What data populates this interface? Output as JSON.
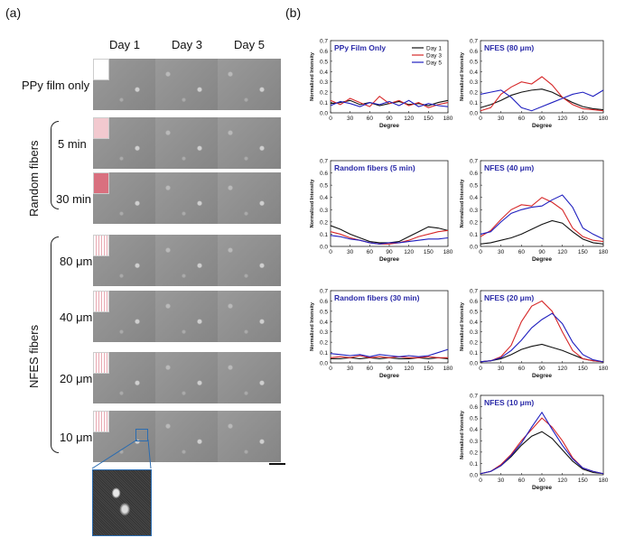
{
  "panel_a": {
    "label": "(a)",
    "days": [
      "Day 1",
      "Day 3",
      "Day 5"
    ],
    "rows": [
      {
        "label": "PPy film only",
        "inset": "blank"
      },
      {
        "label": "5 min",
        "inset": "rand"
      },
      {
        "label": "30 min",
        "inset": "rand2"
      },
      {
        "label": "80 μm",
        "inset": "lines"
      },
      {
        "label": "40 μm",
        "inset": "lines"
      },
      {
        "label": "20 μm",
        "inset": "lines"
      },
      {
        "label": "10 μm",
        "inset": "lines"
      }
    ],
    "group_random": "Random fibers",
    "group_nfes": "NFES fibers",
    "colors": {
      "zoom_box": "#2b6cb0",
      "cell_bg": "#8f8f8f"
    }
  },
  "panel_b": {
    "label": "(b)"
  },
  "chart_data": [
    {
      "type": "line",
      "title": "PPy Film Only",
      "xlabel": "Degree",
      "ylabel": "Normalized Intensity",
      "xlim": [
        0,
        180
      ],
      "ylim": [
        0,
        0.7
      ],
      "legend": [
        "Day 1",
        "Day 3",
        "Day 5"
      ],
      "xticks": [
        0,
        30,
        60,
        90,
        120,
        150,
        180
      ],
      "yticks": [
        0.0,
        0.1,
        0.2,
        0.3,
        0.4,
        0.5,
        0.6,
        0.7
      ],
      "series": [
        {
          "name": "Day 1",
          "color": "#111111",
          "x": [
            0,
            15,
            30,
            45,
            60,
            75,
            90,
            105,
            120,
            135,
            150,
            165,
            180
          ],
          "y": [
            0.09,
            0.1,
            0.12,
            0.08,
            0.1,
            0.07,
            0.09,
            0.11,
            0.08,
            0.09,
            0.07,
            0.1,
            0.12
          ]
        },
        {
          "name": "Day 3",
          "color": "#d62728",
          "x": [
            0,
            15,
            30,
            45,
            60,
            75,
            90,
            105,
            120,
            135,
            150,
            165,
            180
          ],
          "y": [
            0.12,
            0.08,
            0.14,
            0.1,
            0.06,
            0.16,
            0.09,
            0.12,
            0.07,
            0.1,
            0.05,
            0.08,
            0.1
          ]
        },
        {
          "name": "Day 5",
          "color": "#1f1fbf",
          "x": [
            0,
            15,
            30,
            45,
            60,
            75,
            90,
            105,
            120,
            135,
            150,
            165,
            180
          ],
          "y": [
            0.07,
            0.11,
            0.09,
            0.06,
            0.1,
            0.08,
            0.11,
            0.07,
            0.12,
            0.06,
            0.09,
            0.07,
            0.06
          ]
        }
      ]
    },
    {
      "type": "line",
      "title": "NFES (80 μm)",
      "xlabel": "Degree",
      "ylabel": "Normalized Intensity",
      "xlim": [
        0,
        180
      ],
      "ylim": [
        0,
        0.7
      ],
      "xticks": [
        0,
        30,
        60,
        90,
        120,
        150,
        180
      ],
      "yticks": [
        0.0,
        0.1,
        0.2,
        0.3,
        0.4,
        0.5,
        0.6,
        0.7
      ],
      "series": [
        {
          "name": "Day 1",
          "color": "#111111",
          "x": [
            0,
            15,
            30,
            45,
            60,
            75,
            90,
            105,
            120,
            135,
            150,
            165,
            180
          ],
          "y": [
            0.05,
            0.08,
            0.12,
            0.17,
            0.2,
            0.22,
            0.23,
            0.2,
            0.15,
            0.1,
            0.06,
            0.04,
            0.03
          ]
        },
        {
          "name": "Day 3",
          "color": "#d62728",
          "x": [
            0,
            15,
            30,
            45,
            60,
            75,
            90,
            105,
            120,
            135,
            150,
            165,
            180
          ],
          "y": [
            0.02,
            0.05,
            0.18,
            0.25,
            0.3,
            0.28,
            0.35,
            0.27,
            0.15,
            0.08,
            0.04,
            0.03,
            0.02
          ]
        },
        {
          "name": "Day 5",
          "color": "#1f1fbf",
          "x": [
            0,
            15,
            30,
            45,
            60,
            75,
            90,
            105,
            120,
            135,
            150,
            165,
            180
          ],
          "y": [
            0.18,
            0.2,
            0.22,
            0.15,
            0.05,
            0.02,
            0.06,
            0.1,
            0.14,
            0.18,
            0.2,
            0.16,
            0.22
          ]
        }
      ]
    },
    {
      "type": "line",
      "title": "Random fibers (5 min)",
      "xlabel": "Degree",
      "ylabel": "Normalized Intensity",
      "xlim": [
        0,
        180
      ],
      "ylim": [
        0,
        0.7
      ],
      "xticks": [
        0,
        30,
        60,
        90,
        120,
        150,
        180
      ],
      "yticks": [
        0.0,
        0.1,
        0.2,
        0.3,
        0.4,
        0.5,
        0.6,
        0.7
      ],
      "series": [
        {
          "name": "Day 1",
          "color": "#111111",
          "x": [
            0,
            15,
            30,
            45,
            60,
            75,
            90,
            105,
            120,
            135,
            150,
            165,
            180
          ],
          "y": [
            0.17,
            0.14,
            0.1,
            0.07,
            0.04,
            0.03,
            0.03,
            0.04,
            0.08,
            0.12,
            0.16,
            0.15,
            0.13
          ]
        },
        {
          "name": "Day 3",
          "color": "#d62728",
          "x": [
            0,
            15,
            30,
            45,
            60,
            75,
            90,
            105,
            120,
            135,
            150,
            165,
            180
          ],
          "y": [
            0.12,
            0.1,
            0.07,
            0.05,
            0.03,
            0.02,
            0.02,
            0.03,
            0.05,
            0.08,
            0.1,
            0.12,
            0.13
          ]
        },
        {
          "name": "Day 5",
          "color": "#1f1fbf",
          "x": [
            0,
            15,
            30,
            45,
            60,
            75,
            90,
            105,
            120,
            135,
            150,
            165,
            180
          ],
          "y": [
            0.09,
            0.08,
            0.06,
            0.05,
            0.03,
            0.02,
            0.03,
            0.03,
            0.04,
            0.05,
            0.06,
            0.06,
            0.07
          ]
        }
      ]
    },
    {
      "type": "line",
      "title": "NFES (40 μm)",
      "xlabel": "Degree",
      "ylabel": "Normalized Intensity",
      "xlim": [
        0,
        180
      ],
      "ylim": [
        0,
        0.7
      ],
      "xticks": [
        0,
        30,
        60,
        90,
        120,
        150,
        180
      ],
      "yticks": [
        0.0,
        0.1,
        0.2,
        0.3,
        0.4,
        0.5,
        0.6,
        0.7
      ],
      "series": [
        {
          "name": "Day 1",
          "color": "#111111",
          "x": [
            0,
            15,
            30,
            45,
            60,
            75,
            90,
            105,
            120,
            135,
            150,
            165,
            180
          ],
          "y": [
            0.02,
            0.03,
            0.05,
            0.07,
            0.1,
            0.14,
            0.18,
            0.21,
            0.19,
            0.12,
            0.06,
            0.03,
            0.02
          ]
        },
        {
          "name": "Day 3",
          "color": "#d62728",
          "x": [
            0,
            15,
            30,
            45,
            60,
            75,
            90,
            105,
            120,
            135,
            150,
            165,
            180
          ],
          "y": [
            0.08,
            0.13,
            0.22,
            0.3,
            0.34,
            0.33,
            0.4,
            0.36,
            0.3,
            0.15,
            0.08,
            0.05,
            0.04
          ]
        },
        {
          "name": "Day 5",
          "color": "#1f1fbf",
          "x": [
            0,
            15,
            30,
            45,
            60,
            75,
            90,
            105,
            120,
            135,
            150,
            165,
            180
          ],
          "y": [
            0.1,
            0.12,
            0.2,
            0.27,
            0.3,
            0.32,
            0.33,
            0.38,
            0.42,
            0.32,
            0.15,
            0.1,
            0.06
          ]
        }
      ]
    },
    {
      "type": "line",
      "title": "Random fibers (30 min)",
      "xlabel": "Degree",
      "ylabel": "Normalized Intensity",
      "xlim": [
        0,
        180
      ],
      "ylim": [
        0,
        0.7
      ],
      "xticks": [
        0,
        30,
        60,
        90,
        120,
        150,
        180
      ],
      "yticks": [
        0.0,
        0.1,
        0.2,
        0.3,
        0.4,
        0.5,
        0.6,
        0.7
      ],
      "series": [
        {
          "name": "Day 1",
          "color": "#111111",
          "x": [
            0,
            15,
            30,
            45,
            60,
            75,
            90,
            105,
            120,
            135,
            150,
            165,
            180
          ],
          "y": [
            0.04,
            0.04,
            0.05,
            0.04,
            0.05,
            0.04,
            0.05,
            0.04,
            0.04,
            0.05,
            0.04,
            0.05,
            0.04
          ]
        },
        {
          "name": "Day 3",
          "color": "#d62728",
          "x": [
            0,
            15,
            30,
            45,
            60,
            75,
            90,
            105,
            120,
            135,
            150,
            165,
            180
          ],
          "y": [
            0.05,
            0.06,
            0.05,
            0.07,
            0.05,
            0.06,
            0.05,
            0.06,
            0.05,
            0.05,
            0.06,
            0.05,
            0.05
          ]
        },
        {
          "name": "Day 5",
          "color": "#1f1fbf",
          "x": [
            0,
            15,
            30,
            45,
            60,
            75,
            90,
            105,
            120,
            135,
            150,
            165,
            180
          ],
          "y": [
            0.09,
            0.08,
            0.07,
            0.08,
            0.06,
            0.08,
            0.07,
            0.06,
            0.07,
            0.06,
            0.07,
            0.1,
            0.13
          ]
        }
      ]
    },
    {
      "type": "line",
      "title": "NFES (20 μm)",
      "xlabel": "Degree",
      "ylabel": "Normalized Intensity",
      "xlim": [
        0,
        180
      ],
      "ylim": [
        0,
        0.7
      ],
      "xticks": [
        0,
        30,
        60,
        90,
        120,
        150,
        180
      ],
      "yticks": [
        0.0,
        0.1,
        0.2,
        0.3,
        0.4,
        0.5,
        0.6,
        0.7
      ],
      "series": [
        {
          "name": "Day 1",
          "color": "#111111",
          "x": [
            0,
            15,
            30,
            45,
            60,
            75,
            90,
            105,
            120,
            135,
            150,
            165,
            180
          ],
          "y": [
            0.01,
            0.02,
            0.04,
            0.08,
            0.13,
            0.16,
            0.18,
            0.15,
            0.12,
            0.08,
            0.04,
            0.02,
            0.01
          ]
        },
        {
          "name": "Day 3",
          "color": "#d62728",
          "x": [
            0,
            15,
            30,
            45,
            60,
            75,
            90,
            105,
            120,
            135,
            150,
            165,
            180
          ],
          "y": [
            0.01,
            0.02,
            0.06,
            0.17,
            0.4,
            0.55,
            0.6,
            0.5,
            0.3,
            0.12,
            0.04,
            0.02,
            0.01
          ]
        },
        {
          "name": "Day 5",
          "color": "#1f1fbf",
          "x": [
            0,
            15,
            30,
            45,
            60,
            75,
            90,
            105,
            120,
            135,
            150,
            165,
            180
          ],
          "y": [
            0.01,
            0.02,
            0.05,
            0.12,
            0.22,
            0.34,
            0.42,
            0.48,
            0.38,
            0.2,
            0.08,
            0.03,
            0.01
          ]
        }
      ]
    },
    {
      "type": "line",
      "title": "NFES (10 μm)",
      "xlabel": "Degree",
      "ylabel": "Normalized Intensity",
      "xlim": [
        0,
        180
      ],
      "ylim": [
        0,
        0.7
      ],
      "xticks": [
        0,
        30,
        60,
        90,
        120,
        150,
        180
      ],
      "yticks": [
        0.0,
        0.1,
        0.2,
        0.3,
        0.4,
        0.5,
        0.6,
        0.7
      ],
      "series": [
        {
          "name": "Day 1",
          "color": "#111111",
          "x": [
            0,
            15,
            30,
            45,
            60,
            75,
            90,
            105,
            120,
            135,
            150,
            165,
            180
          ],
          "y": [
            0.01,
            0.03,
            0.08,
            0.16,
            0.26,
            0.34,
            0.38,
            0.32,
            0.22,
            0.12,
            0.05,
            0.02,
            0.01
          ]
        },
        {
          "name": "Day 3",
          "color": "#d62728",
          "x": [
            0,
            15,
            30,
            45,
            60,
            75,
            90,
            105,
            120,
            135,
            150,
            165,
            180
          ],
          "y": [
            0.01,
            0.03,
            0.09,
            0.18,
            0.3,
            0.4,
            0.5,
            0.42,
            0.3,
            0.15,
            0.06,
            0.03,
            0.01
          ]
        },
        {
          "name": "Day 5",
          "color": "#1f1fbf",
          "x": [
            0,
            15,
            30,
            45,
            60,
            75,
            90,
            105,
            120,
            135,
            150,
            165,
            180
          ],
          "y": [
            0.01,
            0.03,
            0.08,
            0.17,
            0.28,
            0.42,
            0.55,
            0.4,
            0.26,
            0.14,
            0.06,
            0.03,
            0.01
          ]
        }
      ]
    }
  ]
}
